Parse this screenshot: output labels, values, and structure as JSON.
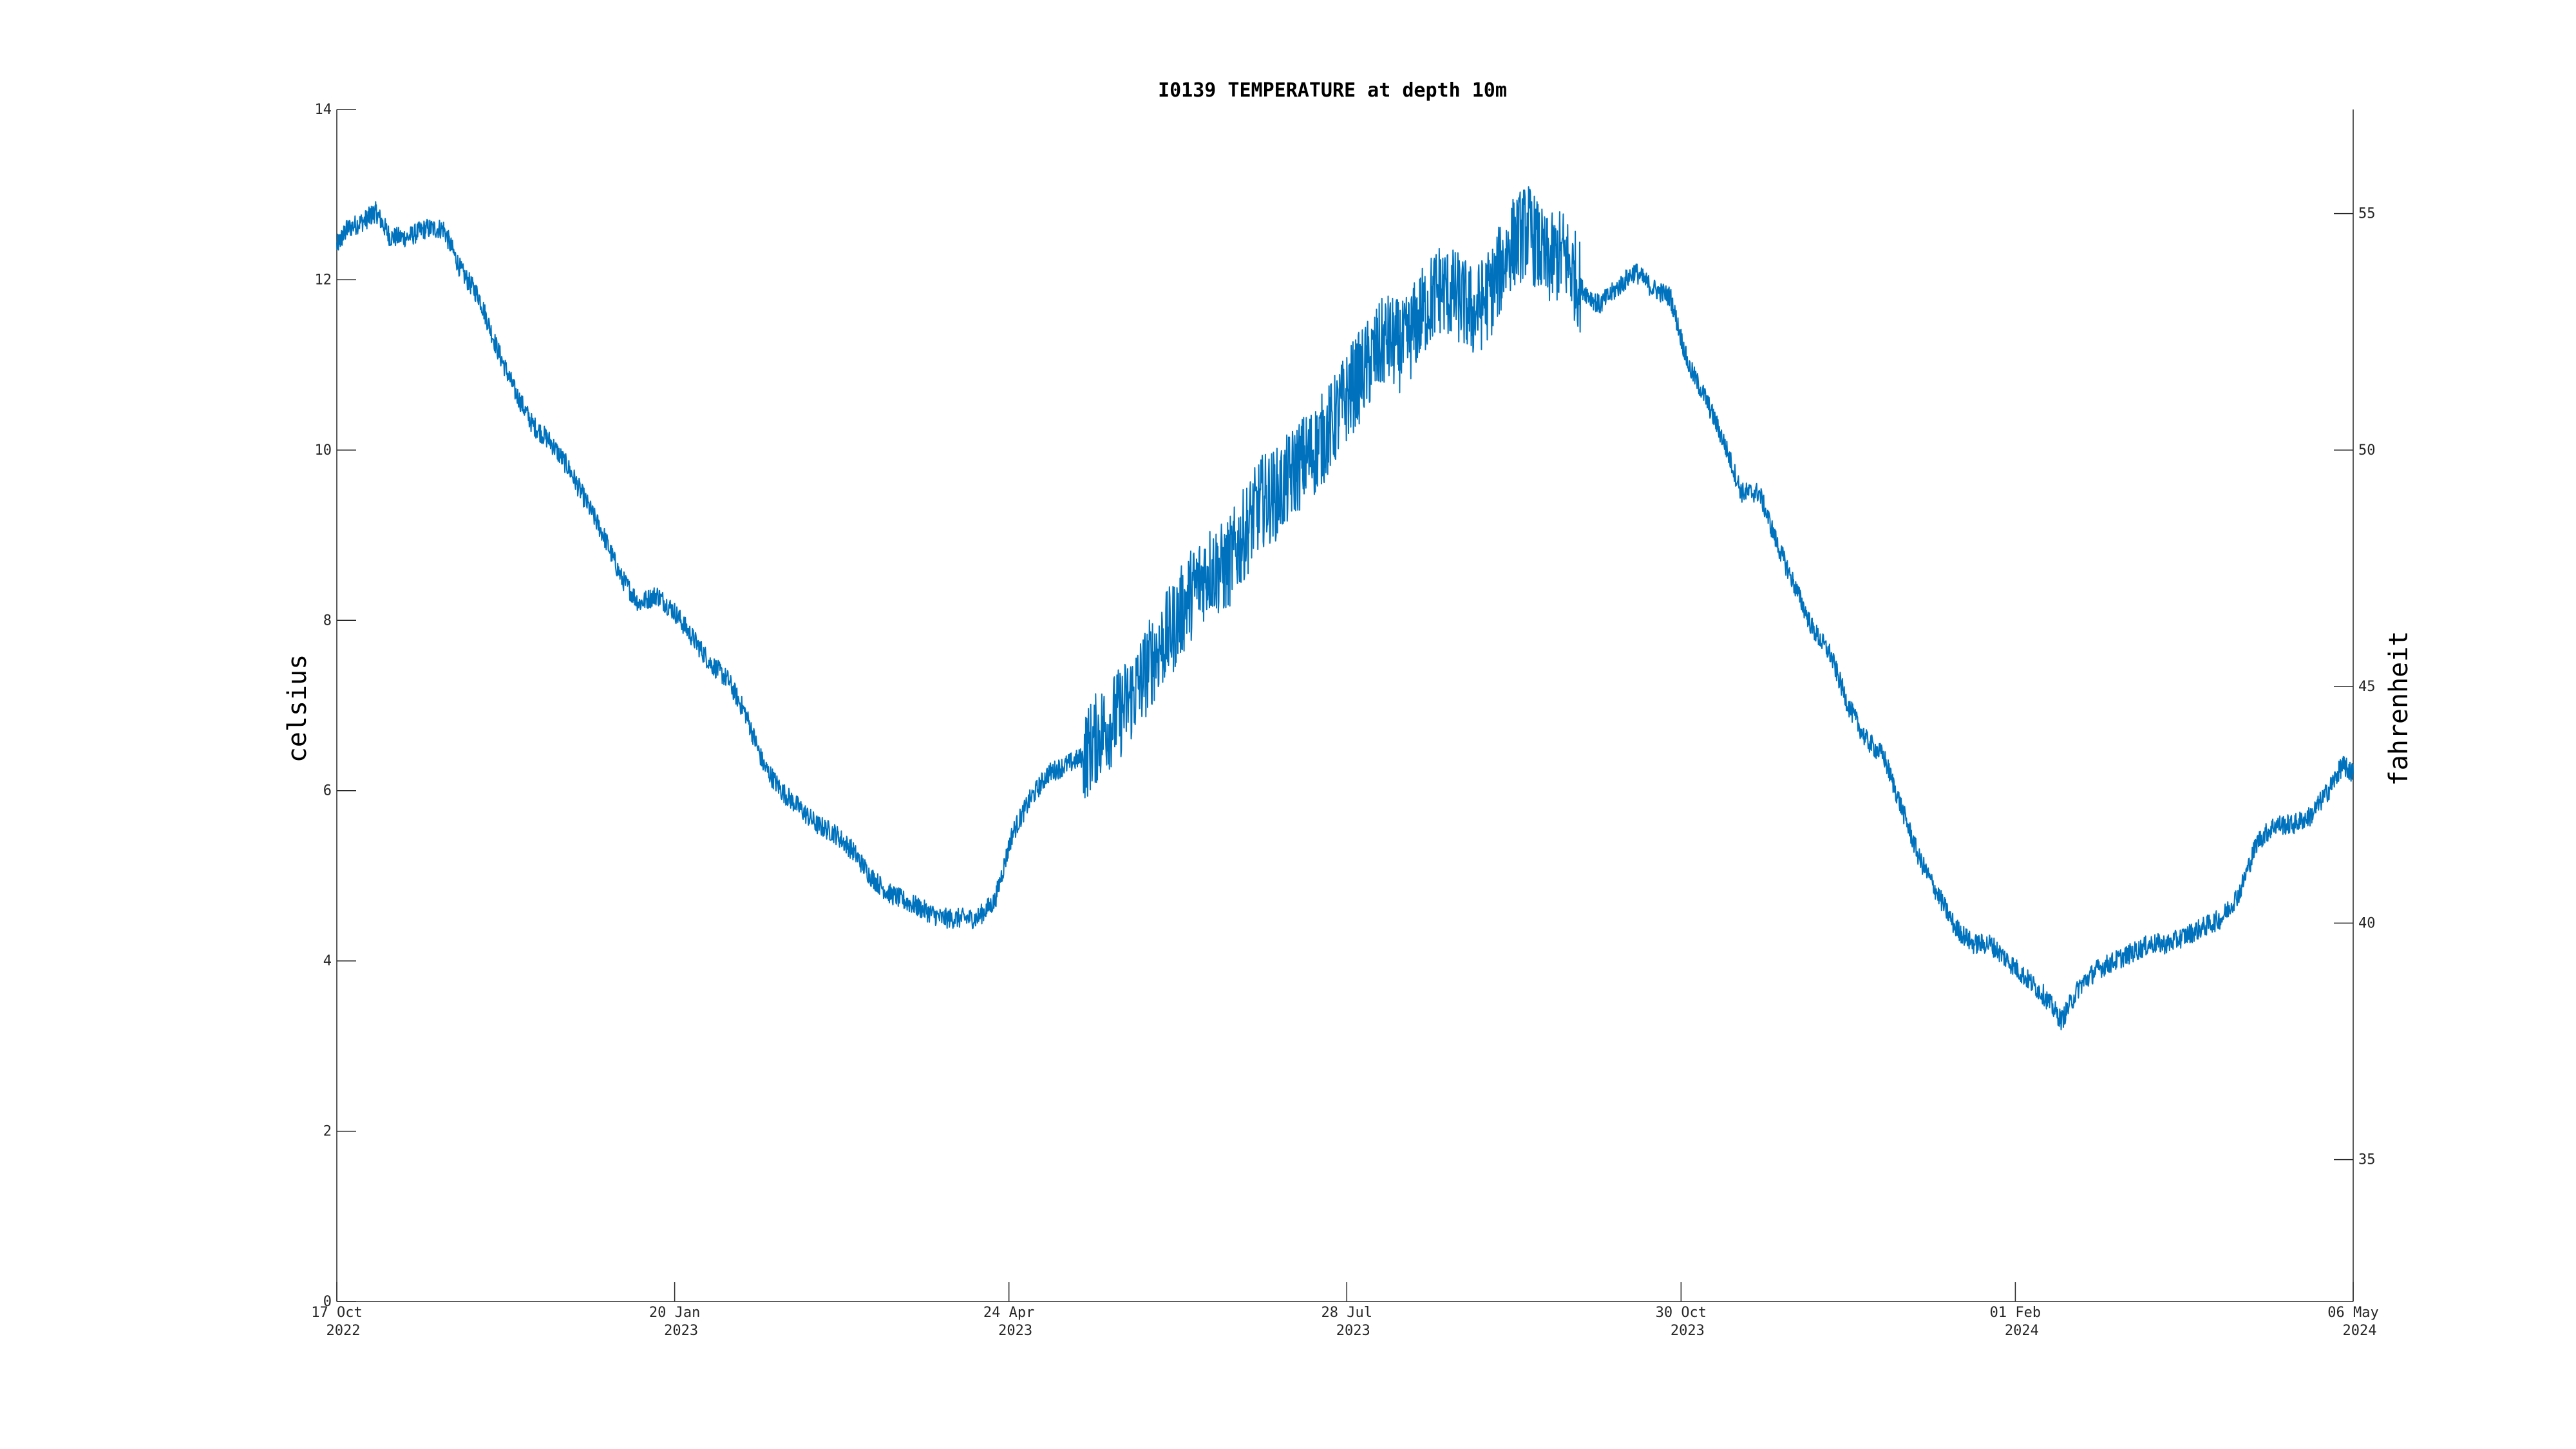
{
  "chart_data": {
    "type": "line",
    "title": "I0139 TEMPERATURE at depth 10m",
    "ylabel": "celsius",
    "ylabel_right": "fahrenheit",
    "xlabel": "",
    "x_range_days": [
      "2022-10-17",
      "2024-05-06"
    ],
    "ylim": [
      0,
      14
    ],
    "ylim_right_fahrenheit": [
      32,
      57.2
    ],
    "y_ticks": [
      0,
      2,
      4,
      6,
      8,
      10,
      12,
      14
    ],
    "y_ticks_right": [
      35,
      40,
      45,
      50,
      55
    ],
    "x_ticks": [
      {
        "date": "2022-10-17",
        "label_day": "17 Oct",
        "label_year": "2022"
      },
      {
        "date": "2023-01-20",
        "label_day": "20 Jan",
        "label_year": "2023"
      },
      {
        "date": "2023-04-24",
        "label_day": "24 Apr",
        "label_year": "2023"
      },
      {
        "date": "2023-07-28",
        "label_day": "28 Jul",
        "label_year": "2023"
      },
      {
        "date": "2023-10-30",
        "label_day": "30 Oct",
        "label_year": "2023"
      },
      {
        "date": "2024-02-01",
        "label_day": "01 Feb",
        "label_year": "2024"
      },
      {
        "date": "2024-05-06",
        "label_day": "06 May",
        "label_year": "2024"
      }
    ],
    "grid": false,
    "series": [
      {
        "color": "#0072BD",
        "points": [
          [
            "2022-10-17",
            12.4
          ],
          [
            "2022-10-20",
            12.6
          ],
          [
            "2022-10-25",
            12.7
          ],
          [
            "2022-10-28",
            12.8
          ],
          [
            "2022-11-01",
            12.5
          ],
          [
            "2022-11-06",
            12.5
          ],
          [
            "2022-11-11",
            12.6
          ],
          [
            "2022-11-16",
            12.6
          ],
          [
            "2022-11-21",
            12.1
          ],
          [
            "2022-11-26",
            11.8
          ],
          [
            "2022-12-01",
            11.2
          ],
          [
            "2022-12-06",
            10.7
          ],
          [
            "2022-12-11",
            10.3
          ],
          [
            "2022-12-16",
            10.1
          ],
          [
            "2022-12-21",
            9.8
          ],
          [
            "2022-12-26",
            9.4
          ],
          [
            "2022-12-31",
            9.0
          ],
          [
            "2023-01-05",
            8.5
          ],
          [
            "2023-01-10",
            8.2
          ],
          [
            "2023-01-15",
            8.3
          ],
          [
            "2023-01-20",
            8.1
          ],
          [
            "2023-01-25",
            7.8
          ],
          [
            "2023-01-30",
            7.5
          ],
          [
            "2023-02-04",
            7.3
          ],
          [
            "2023-02-09",
            6.9
          ],
          [
            "2023-02-14",
            6.3
          ],
          [
            "2023-02-19",
            6.0
          ],
          [
            "2023-02-24",
            5.8
          ],
          [
            "2023-03-01",
            5.6
          ],
          [
            "2023-03-06",
            5.5
          ],
          [
            "2023-03-11",
            5.3
          ],
          [
            "2023-03-16",
            5.0
          ],
          [
            "2023-03-21",
            4.8
          ],
          [
            "2023-03-26",
            4.7
          ],
          [
            "2023-03-31",
            4.6
          ],
          [
            "2023-04-05",
            4.5
          ],
          [
            "2023-04-10",
            4.5
          ],
          [
            "2023-04-15",
            4.5
          ],
          [
            "2023-04-20",
            4.7
          ],
          [
            "2023-04-25",
            5.5
          ],
          [
            "2023-04-30",
            5.9
          ],
          [
            "2023-05-05",
            6.2
          ],
          [
            "2023-05-10",
            6.3
          ],
          [
            "2023-05-15",
            6.4
          ],
          [
            "2023-05-20",
            6.7
          ],
          [
            "2023-05-25",
            6.9
          ],
          [
            "2023-05-30",
            7.2
          ],
          [
            "2023-06-04",
            7.6
          ],
          [
            "2023-06-09",
            7.9
          ],
          [
            "2023-06-14",
            8.3
          ],
          [
            "2023-06-19",
            8.6
          ],
          [
            "2023-06-24",
            8.6
          ],
          [
            "2023-06-29",
            9.0
          ],
          [
            "2023-07-04",
            9.4
          ],
          [
            "2023-07-09",
            9.5
          ],
          [
            "2023-07-14",
            9.8
          ],
          [
            "2023-07-19",
            10.0
          ],
          [
            "2023-07-24",
            10.3
          ],
          [
            "2023-07-29",
            10.7
          ],
          [
            "2023-08-03",
            11.0
          ],
          [
            "2023-08-08",
            11.3
          ],
          [
            "2023-08-13",
            11.2
          ],
          [
            "2023-08-18",
            11.6
          ],
          [
            "2023-08-23",
            11.9
          ],
          [
            "2023-08-28",
            11.8
          ],
          [
            "2023-09-02",
            11.6
          ],
          [
            "2023-09-07",
            11.9
          ],
          [
            "2023-09-12",
            12.4
          ],
          [
            "2023-09-17",
            12.6
          ],
          [
            "2023-09-22",
            12.2
          ],
          [
            "2023-09-27",
            12.3
          ],
          [
            "2023-10-02",
            11.9
          ],
          [
            "2023-10-07",
            11.7
          ],
          [
            "2023-10-12",
            11.9
          ],
          [
            "2023-10-17",
            12.1
          ],
          [
            "2023-10-22",
            11.9
          ],
          [
            "2023-10-27",
            11.8
          ],
          [
            "2023-11-01",
            11.0
          ],
          [
            "2023-11-06",
            10.6
          ],
          [
            "2023-11-11",
            10.1
          ],
          [
            "2023-11-16",
            9.5
          ],
          [
            "2023-11-21",
            9.5
          ],
          [
            "2023-11-26",
            8.9
          ],
          [
            "2023-12-01",
            8.4
          ],
          [
            "2023-12-06",
            7.9
          ],
          [
            "2023-12-11",
            7.6
          ],
          [
            "2023-12-16",
            7.0
          ],
          [
            "2023-12-21",
            6.6
          ],
          [
            "2023-12-26",
            6.4
          ],
          [
            "2023-12-31",
            5.8
          ],
          [
            "2024-01-05",
            5.2
          ],
          [
            "2024-01-10",
            4.8
          ],
          [
            "2024-01-15",
            4.4
          ],
          [
            "2024-01-20",
            4.2
          ],
          [
            "2024-01-25",
            4.2
          ],
          [
            "2024-01-30",
            4.0
          ],
          [
            "2024-02-04",
            3.8
          ],
          [
            "2024-02-09",
            3.6
          ],
          [
            "2024-02-14",
            3.3
          ],
          [
            "2024-02-19",
            3.7
          ],
          [
            "2024-02-24",
            3.9
          ],
          [
            "2024-02-29",
            4.0
          ],
          [
            "2024-03-05",
            4.1
          ],
          [
            "2024-03-10",
            4.2
          ],
          [
            "2024-03-15",
            4.2
          ],
          [
            "2024-03-20",
            4.3
          ],
          [
            "2024-03-25",
            4.4
          ],
          [
            "2024-03-30",
            4.5
          ],
          [
            "2024-04-04",
            4.8
          ],
          [
            "2024-04-09",
            5.4
          ],
          [
            "2024-04-14",
            5.6
          ],
          [
            "2024-04-19",
            5.6
          ],
          [
            "2024-04-24",
            5.7
          ],
          [
            "2024-04-29",
            6.0
          ],
          [
            "2024-05-03",
            6.3
          ],
          [
            "2024-05-06",
            6.2
          ]
        ]
      }
    ]
  }
}
